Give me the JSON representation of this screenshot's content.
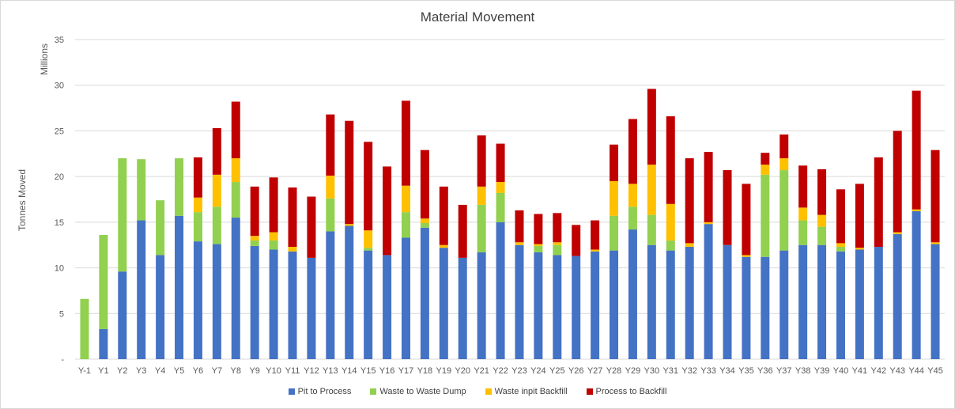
{
  "chart_data": {
    "type": "bar",
    "stacked": true,
    "title": "Material Movement",
    "xlabel": "",
    "ylabel": "Tonnes Moved",
    "y_units_label": "Millions",
    "ylim": [
      0,
      35
    ],
    "y_ticks": [
      "-",
      "5",
      "10",
      "15",
      "20",
      "25",
      "30",
      "35"
    ],
    "grid": true,
    "legend_position": "bottom",
    "categories": [
      "Y-1",
      "Y1",
      "Y2",
      "Y3",
      "Y4",
      "Y5",
      "Y6",
      "Y7",
      "Y8",
      "Y9",
      "Y10",
      "Y11",
      "Y12",
      "Y13",
      "Y14",
      "Y15",
      "Y16",
      "Y17",
      "Y18",
      "Y19",
      "Y20",
      "Y21",
      "Y22",
      "Y23",
      "Y24",
      "Y25",
      "Y26",
      "Y27",
      "Y28",
      "Y29",
      "Y30",
      "Y31",
      "Y32",
      "Y33",
      "Y34",
      "Y35",
      "Y36",
      "Y37",
      "Y38",
      "Y39",
      "Y40",
      "Y41",
      "Y42",
      "Y43",
      "Y44",
      "Y45"
    ],
    "series": [
      {
        "name": "Pit to Process",
        "color": "#4472c4",
        "values": [
          0,
          3.3,
          9.6,
          15.2,
          11.4,
          15.7,
          12.9,
          12.6,
          15.5,
          12.4,
          12.0,
          11.8,
          11.1,
          14.0,
          14.6,
          11.9,
          11.4,
          13.3,
          14.4,
          12.2,
          11.1,
          11.7,
          15.0,
          12.5,
          11.7,
          11.4,
          11.3,
          11.8,
          11.9,
          14.2,
          12.5,
          11.9,
          12.3,
          14.8,
          12.5,
          11.2,
          11.2,
          11.9,
          12.5,
          12.5,
          11.8,
          12.0,
          12.3,
          13.7,
          16.2,
          12.6
        ]
      },
      {
        "name": "Waste to Waste Dump",
        "color": "#92d050",
        "values": [
          6.6,
          10.3,
          12.4,
          6.7,
          6.0,
          6.3,
          3.2,
          4.1,
          3.9,
          0.6,
          1.0,
          0,
          0,
          3.6,
          0,
          0.3,
          0,
          2.8,
          0.5,
          0,
          0,
          5.2,
          3.2,
          0,
          0.7,
          1.1,
          0,
          0,
          3.8,
          2.5,
          3.3,
          1.1,
          0,
          0,
          0,
          0,
          9.0,
          8.8,
          2.7,
          2.0,
          0.5,
          0,
          0,
          0,
          0,
          0
        ]
      },
      {
        "name": "Waste inpit Backfill",
        "color": "#ffc000",
        "values": [
          0,
          0,
          0,
          0,
          0,
          0,
          1.6,
          3.5,
          2.6,
          0.5,
          0.9,
          0.5,
          0,
          2.5,
          0.2,
          1.9,
          0,
          2.9,
          0.5,
          0.3,
          0,
          2.0,
          1.2,
          0.3,
          0.2,
          0.3,
          0,
          0.2,
          3.8,
          2.5,
          5.5,
          4.0,
          0.4,
          0.2,
          0,
          0.2,
          1.1,
          1.3,
          1.4,
          1.3,
          0.4,
          0.2,
          0,
          0.2,
          0.2,
          0.2
        ]
      },
      {
        "name": "Process to Backfill",
        "color": "#c00000",
        "values": [
          0,
          0,
          0,
          0,
          0,
          0,
          4.4,
          5.1,
          6.2,
          5.4,
          6.0,
          6.5,
          6.7,
          6.7,
          11.3,
          9.7,
          9.7,
          9.3,
          7.5,
          6.4,
          5.8,
          5.6,
          4.2,
          3.5,
          3.3,
          3.2,
          3.4,
          3.2,
          4.0,
          7.1,
          8.3,
          9.6,
          9.3,
          7.7,
          8.2,
          7.8,
          1.3,
          2.6,
          4.6,
          5.0,
          5.9,
          7.0,
          9.8,
          11.1,
          13.0,
          10.1
        ]
      }
    ]
  }
}
